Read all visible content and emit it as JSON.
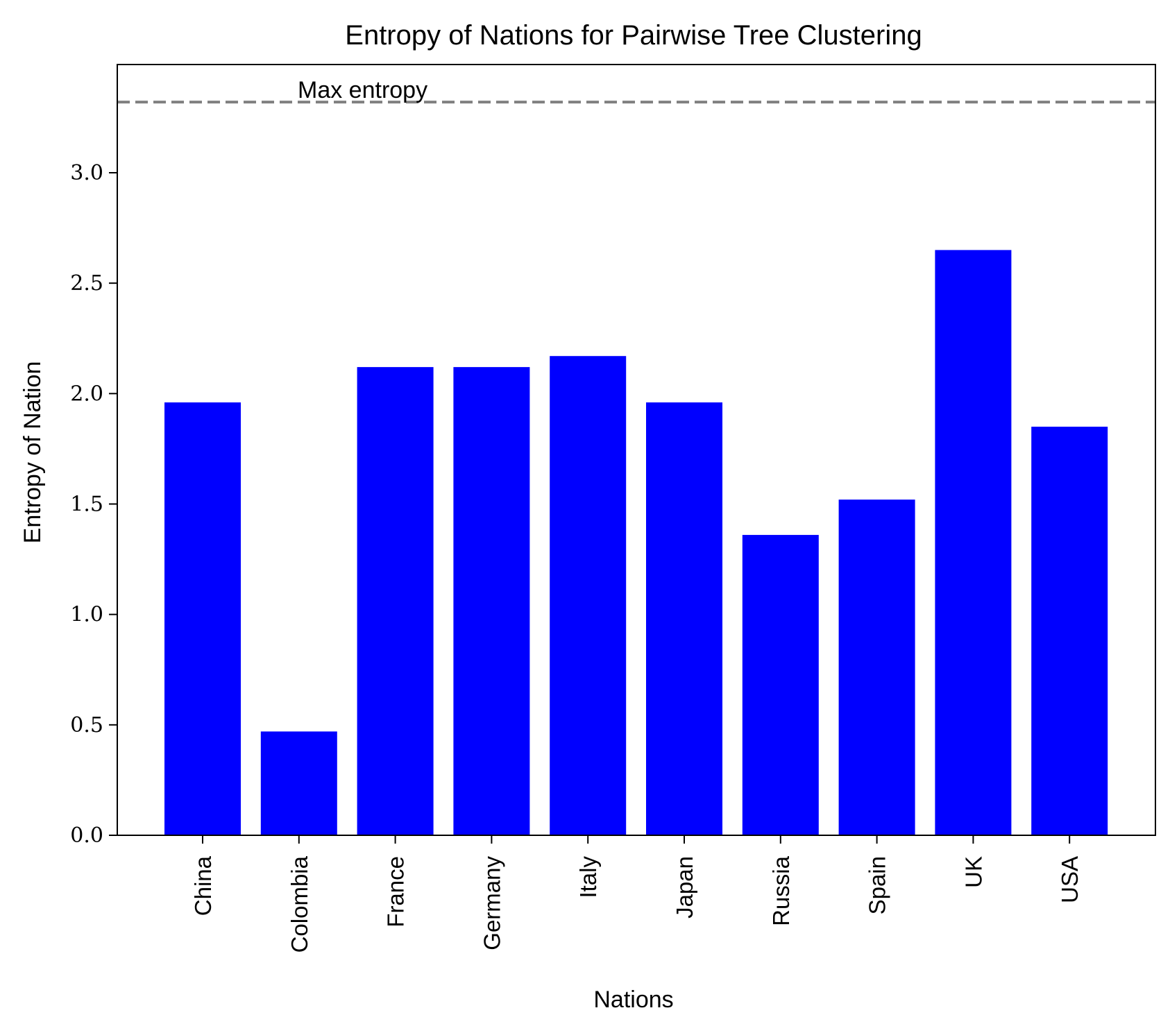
{
  "chart_data": {
    "type": "bar",
    "title": "Entropy of Nations for Pairwise Tree Clustering",
    "xlabel": "Nations",
    "ylabel": "Entropy of Nation",
    "categories": [
      "China",
      "Colombia",
      "France",
      "Germany",
      "Italy",
      "Japan",
      "Russia",
      "Spain",
      "UK",
      "USA"
    ],
    "values": [
      1.96,
      0.47,
      2.12,
      2.12,
      2.17,
      1.96,
      1.36,
      1.52,
      2.65,
      1.85
    ],
    "ylim": [
      0,
      3.49
    ],
    "yticks": [
      "0.0",
      "0.5",
      "1.0",
      "1.5",
      "2.0",
      "2.5",
      "3.0"
    ],
    "bar_color": "#0000ff",
    "reference_line": {
      "value": 3.32,
      "label": "Max entropy",
      "color": "#808080",
      "style": "dashed"
    },
    "grid": false,
    "legend": "none"
  }
}
